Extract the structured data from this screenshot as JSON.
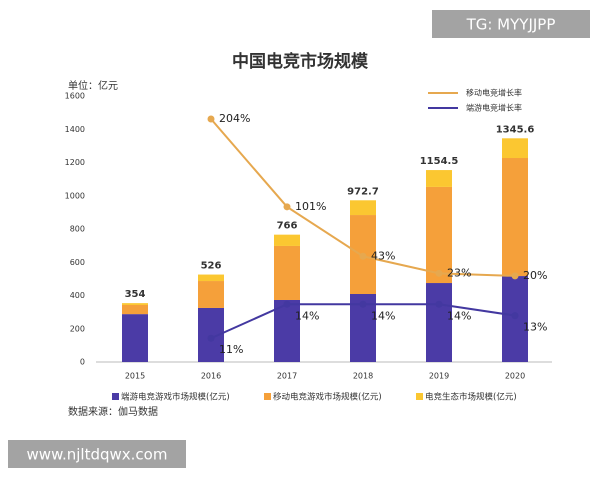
{
  "watermark_top": "TG: MYYJJPP",
  "watermark_bottom": "www.njltdqwx.com",
  "chart_data": {
    "type": "stacked-bar-line",
    "title": "中国电竞市场规模",
    "y_unit": "单位：亿元",
    "source": "数据来源：伽马数据",
    "categories": [
      "2015",
      "2016",
      "2017",
      "2018",
      "2019",
      "2020"
    ],
    "ylim": [
      0,
      1600
    ],
    "yticks": [
      0,
      200,
      400,
      600,
      800,
      1000,
      1200,
      1400,
      1600
    ],
    "grid": false,
    "y2lim": [
      -81,
      231
    ],
    "y3lim": [
      8.9,
      32.4
    ],
    "series": [
      {
        "name": "端游电竞游戏市场规模(亿元)",
        "color": "#4b3ba6",
        "values": [
          288,
          325,
          373,
          409,
          475,
          517
        ]
      },
      {
        "name": "移动电竞游戏市场规模(亿元)",
        "color": "#f5a03a",
        "values": [
          55,
          162,
          325,
          475,
          578,
          710
        ]
      },
      {
        "name": "电竞生态市场规模(亿元)",
        "color": "#fbc731",
        "values": [
          11,
          39,
          68,
          88.7,
          101.5,
          118.6
        ]
      }
    ],
    "total_labels": [
      354,
      526,
      766,
      972.7,
      1154.5,
      1345.6
    ],
    "lines": [
      {
        "name": "移动电竞增长率",
        "color": "#e6a84f",
        "axis": "y2",
        "values": [
          null,
          204,
          101,
          43,
          23,
          20
        ],
        "value_labels": [
          null,
          "204%",
          "101%",
          "43%",
          "23%",
          "20%"
        ]
      },
      {
        "name": "端游电竞增长率",
        "color": "#4338a0",
        "axis": "y3",
        "values": [
          null,
          11,
          14,
          14,
          14,
          13
        ],
        "value_labels": [
          null,
          "11%",
          "14%",
          "14%",
          "14%",
          "13%"
        ]
      }
    ]
  }
}
